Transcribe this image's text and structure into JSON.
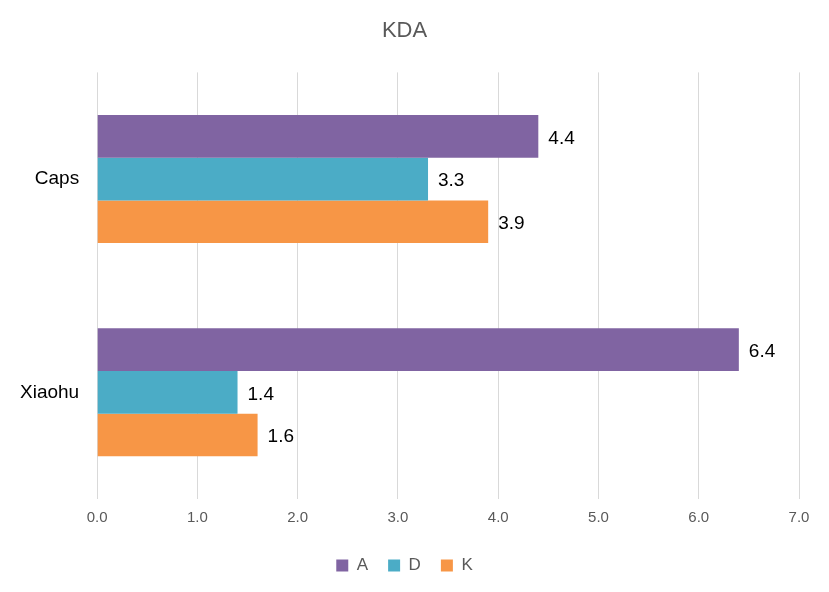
{
  "chart_data": {
    "type": "bar",
    "title": "KDA",
    "orientation": "horizontal",
    "categories": [
      "Caps",
      "Xiaohu"
    ],
    "series": [
      {
        "name": "A",
        "color": "#8064a2",
        "values": [
          4.4,
          6.4
        ]
      },
      {
        "name": "D",
        "color": "#4bacc6",
        "values": [
          3.3,
          1.4
        ]
      },
      {
        "name": "K",
        "color": "#f79646",
        "values": [
          3.9,
          1.6
        ]
      }
    ],
    "xlim": [
      0,
      7
    ],
    "xticks": [
      {
        "value": 0,
        "label": "0.0"
      },
      {
        "value": 1,
        "label": "1.0"
      },
      {
        "value": 2,
        "label": "2.0"
      },
      {
        "value": 3,
        "label": "3.0"
      },
      {
        "value": 4,
        "label": "4.0"
      },
      {
        "value": 5,
        "label": "5.0"
      },
      {
        "value": 6,
        "label": "6.0"
      },
      {
        "value": 7,
        "label": "7.0"
      }
    ],
    "grid": true,
    "legend": "bottom",
    "data_labels": true
  }
}
